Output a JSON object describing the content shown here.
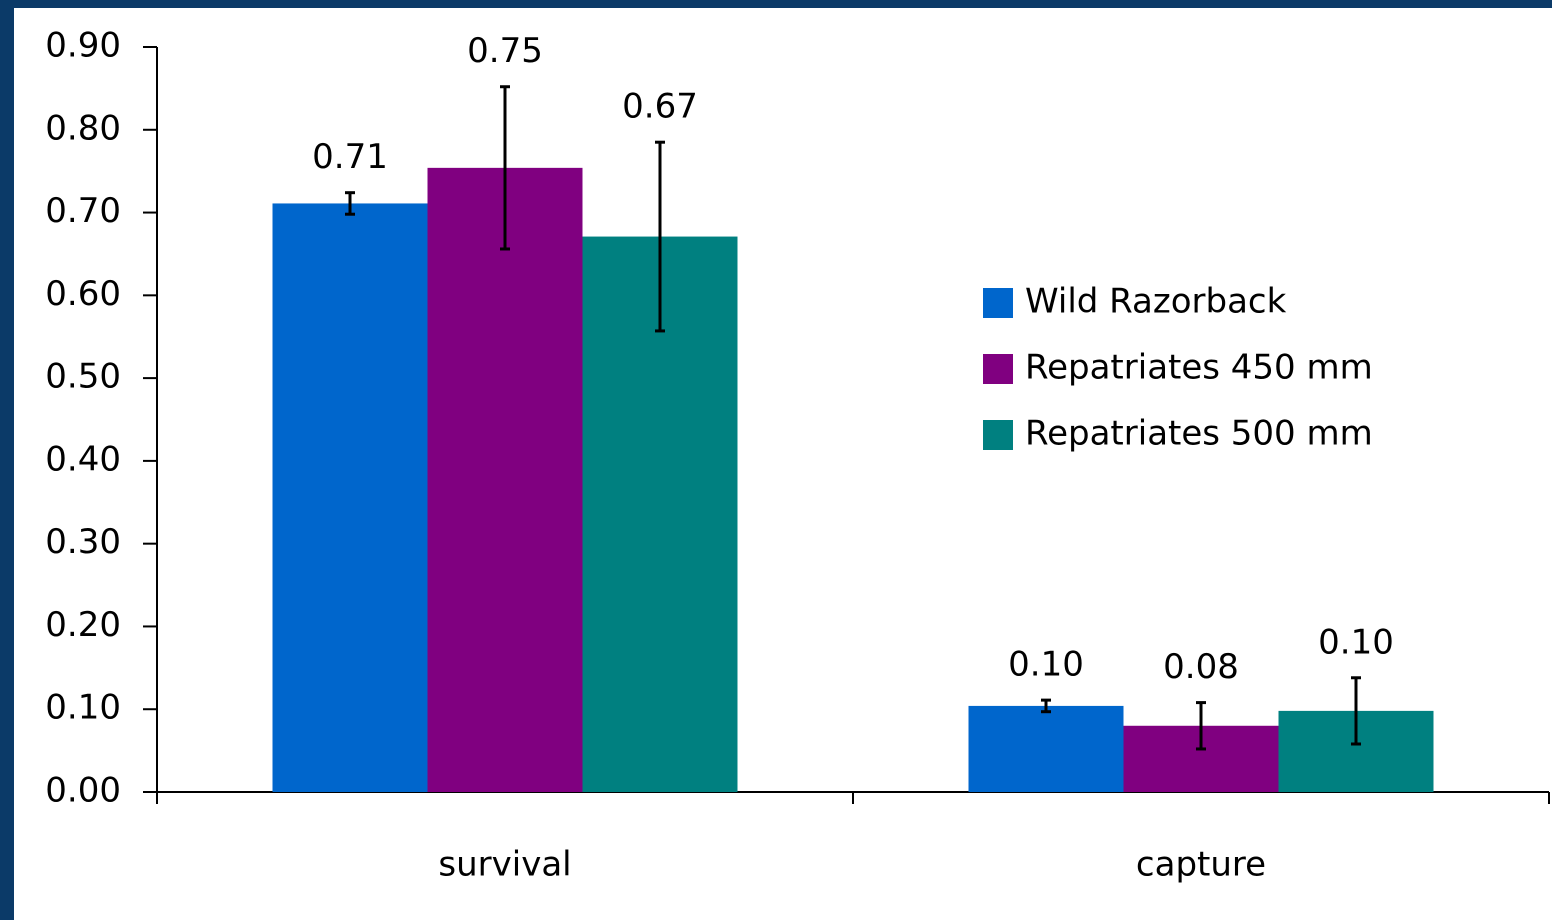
{
  "chart_data": {
    "type": "bar",
    "categories": [
      "survival",
      "capture"
    ],
    "series": [
      {
        "name": "Wild Razorback",
        "color": "#0066cc",
        "values": [
          0.711,
          0.104
        ],
        "value_labels": [
          "0.71",
          "0.10"
        ],
        "errors": [
          0.013,
          0.007
        ]
      },
      {
        "name": "Repatriates 450 mm",
        "color": "#800080",
        "values": [
          0.754,
          0.08
        ],
        "value_labels": [
          "0.75",
          "0.08"
        ],
        "errors": [
          0.098,
          0.028
        ]
      },
      {
        "name": "Repatriates 500 mm",
        "color": "#008080",
        "values": [
          0.671,
          0.098
        ],
        "value_labels": [
          "0.67",
          "0.10"
        ],
        "errors": [
          0.114,
          0.04
        ]
      }
    ],
    "ylim": [
      0,
      0.9
    ],
    "yticks": [
      {
        "value": 0,
        "label": "0.00"
      },
      {
        "value": 0.1,
        "label": "0.10"
      },
      {
        "value": 0.2,
        "label": "0.20"
      },
      {
        "value": 0.3,
        "label": "0.30"
      },
      {
        "value": 0.4,
        "label": "0.40"
      },
      {
        "value": 0.5,
        "label": "0.50"
      },
      {
        "value": 0.6,
        "label": "0.60"
      },
      {
        "value": 0.7,
        "label": "0.70"
      },
      {
        "value": 0.8,
        "label": "0.80"
      },
      {
        "value": 0.9,
        "label": "0.90"
      }
    ],
    "legend": "right"
  }
}
